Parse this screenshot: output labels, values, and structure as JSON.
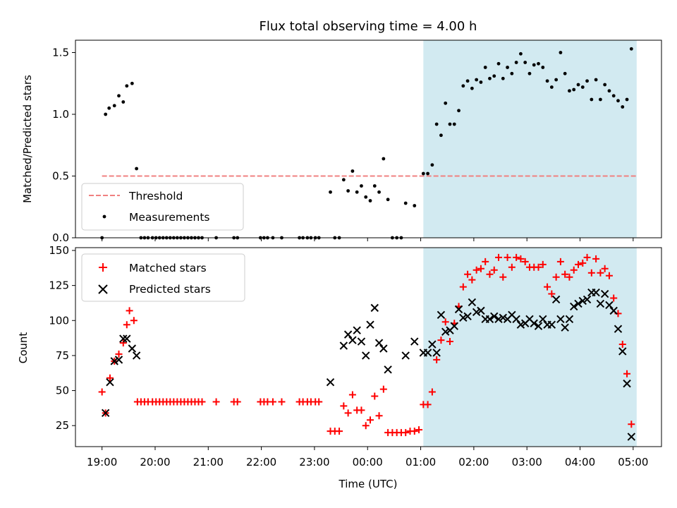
{
  "chart_data": {
    "title": "Flux total observing time = 4.00 h",
    "xlabel": "Time (UTC)",
    "colors": {
      "matched": "#ff0000",
      "predicted": "#000000",
      "threshold": "#f08080",
      "shade": "#add8e6"
    },
    "x_ticks": [
      {
        "t": 0,
        "label": "19:00"
      },
      {
        "t": 60,
        "label": "20:00"
      },
      {
        "t": 120,
        "label": "21:00"
      },
      {
        "t": 180,
        "label": "22:00"
      },
      {
        "t": 240,
        "label": "23:00"
      },
      {
        "t": 300,
        "label": "00:00"
      },
      {
        "t": 360,
        "label": "01:00"
      },
      {
        "t": 420,
        "label": "02:00"
      },
      {
        "t": 480,
        "label": "03:00"
      },
      {
        "t": 540,
        "label": "04:00"
      },
      {
        "t": 600,
        "label": "05:00"
      }
    ],
    "xlim_minutes": [
      -30,
      632
    ],
    "shaded_span_minutes": [
      363,
      604
    ],
    "top": {
      "type": "scatter",
      "ylabel": "Matched/Predicted stars",
      "ylim": [
        0,
        1.6
      ],
      "yticks": [
        0.0,
        0.5,
        1.0,
        1.5
      ],
      "threshold": 0.5,
      "threshold_range_minutes": [
        0,
        604
      ],
      "legend": {
        "threshold": "Threshold",
        "measurements": "Measurements"
      },
      "points": [
        [
          0,
          0.0
        ],
        [
          4,
          1.0
        ],
        [
          8,
          1.05
        ],
        [
          14,
          1.07
        ],
        [
          19,
          1.15
        ],
        [
          24,
          1.1
        ],
        [
          28,
          1.23
        ],
        [
          34,
          1.25
        ],
        [
          39,
          0.56
        ],
        [
          44,
          0.0
        ],
        [
          48,
          0.0
        ],
        [
          52,
          0.0
        ],
        [
          57,
          0.0
        ],
        [
          61,
          0.0
        ],
        [
          65,
          0.0
        ],
        [
          69,
          0.0
        ],
        [
          73,
          0.0
        ],
        [
          77,
          0.0
        ],
        [
          81,
          0.0
        ],
        [
          85,
          0.0
        ],
        [
          89,
          0.0
        ],
        [
          93,
          0.0
        ],
        [
          97,
          0.0
        ],
        [
          101,
          0.0
        ],
        [
          105,
          0.0
        ],
        [
          109,
          0.0
        ],
        [
          113,
          0.0
        ],
        [
          129,
          0.0
        ],
        [
          149,
          0.0
        ],
        [
          153,
          0.0
        ],
        [
          179,
          0.0
        ],
        [
          183,
          0.0
        ],
        [
          187,
          0.0
        ],
        [
          193,
          0.0
        ],
        [
          203,
          0.0
        ],
        [
          223,
          0.0
        ],
        [
          227,
          0.0
        ],
        [
          232,
          0.0
        ],
        [
          236,
          0.0
        ],
        [
          241,
          0.0
        ],
        [
          245,
          0.0
        ],
        [
          258,
          0.37
        ],
        [
          263,
          0.0
        ],
        [
          268,
          0.0
        ],
        [
          273,
          0.47
        ],
        [
          278,
          0.38
        ],
        [
          283,
          0.54
        ],
        [
          288,
          0.37
        ],
        [
          293,
          0.42
        ],
        [
          298,
          0.33
        ],
        [
          303,
          0.3
        ],
        [
          308,
          0.42
        ],
        [
          313,
          0.37
        ],
        [
          318,
          0.64
        ],
        [
          323,
          0.31
        ],
        [
          328,
          0.0
        ],
        [
          333,
          0.0
        ],
        [
          338,
          0.0
        ],
        [
          343,
          0.28
        ],
        [
          353,
          0.26
        ],
        [
          363,
          0.52
        ],
        [
          368,
          0.52
        ],
        [
          373,
          0.59
        ],
        [
          378,
          0.92
        ],
        [
          383,
          0.83
        ],
        [
          388,
          1.09
        ],
        [
          393,
          0.92
        ],
        [
          398,
          0.92
        ],
        [
          403,
          1.03
        ],
        [
          408,
          1.23
        ],
        [
          413,
          1.27
        ],
        [
          418,
          1.21
        ],
        [
          423,
          1.28
        ],
        [
          428,
          1.26
        ],
        [
          433,
          1.38
        ],
        [
          438,
          1.29
        ],
        [
          443,
          1.31
        ],
        [
          448,
          1.41
        ],
        [
          453,
          1.29
        ],
        [
          458,
          1.38
        ],
        [
          463,
          1.33
        ],
        [
          468,
          1.42
        ],
        [
          473,
          1.49
        ],
        [
          478,
          1.42
        ],
        [
          483,
          1.33
        ],
        [
          488,
          1.4
        ],
        [
          493,
          1.41
        ],
        [
          498,
          1.38
        ],
        [
          503,
          1.27
        ],
        [
          508,
          1.22
        ],
        [
          513,
          1.28
        ],
        [
          518,
          1.5
        ],
        [
          523,
          1.33
        ],
        [
          528,
          1.19
        ],
        [
          533,
          1.2
        ],
        [
          538,
          1.24
        ],
        [
          543,
          1.22
        ],
        [
          548,
          1.27
        ],
        [
          553,
          1.12
        ],
        [
          558,
          1.28
        ],
        [
          563,
          1.12
        ],
        [
          568,
          1.24
        ],
        [
          573,
          1.19
        ],
        [
          578,
          1.15
        ],
        [
          583,
          1.11
        ],
        [
          588,
          1.06
        ],
        [
          593,
          1.12
        ],
        [
          598,
          1.53
        ]
      ]
    },
    "bottom": {
      "type": "scatter",
      "ylabel": "Count",
      "ylim": [
        10,
        152
      ],
      "yticks": [
        25,
        50,
        75,
        100,
        125,
        150
      ],
      "legend": {
        "matched": "Matched stars",
        "predicted": "Predicted stars"
      },
      "matched": [
        [
          0,
          49
        ],
        [
          4,
          34
        ],
        [
          9,
          59
        ],
        [
          14,
          71
        ],
        [
          19,
          76
        ],
        [
          24,
          84
        ],
        [
          28,
          97
        ],
        [
          31,
          107
        ],
        [
          36,
          100
        ],
        [
          40,
          42
        ],
        [
          44,
          42
        ],
        [
          48,
          42
        ],
        [
          52,
          42
        ],
        [
          57,
          42
        ],
        [
          61,
          42
        ],
        [
          65,
          42
        ],
        [
          69,
          42
        ],
        [
          73,
          42
        ],
        [
          77,
          42
        ],
        [
          81,
          42
        ],
        [
          85,
          42
        ],
        [
          89,
          42
        ],
        [
          93,
          42
        ],
        [
          97,
          42
        ],
        [
          101,
          42
        ],
        [
          105,
          42
        ],
        [
          109,
          42
        ],
        [
          113,
          42
        ],
        [
          129,
          42
        ],
        [
          149,
          42
        ],
        [
          153,
          42
        ],
        [
          179,
          42
        ],
        [
          183,
          42
        ],
        [
          187,
          42
        ],
        [
          193,
          42
        ],
        [
          203,
          42
        ],
        [
          223,
          42
        ],
        [
          227,
          42
        ],
        [
          232,
          42
        ],
        [
          236,
          42
        ],
        [
          241,
          42
        ],
        [
          245,
          42
        ],
        [
          258,
          21
        ],
        [
          263,
          21
        ],
        [
          268,
          21
        ],
        [
          273,
          39
        ],
        [
          278,
          34
        ],
        [
          283,
          47
        ],
        [
          288,
          36
        ],
        [
          293,
          36
        ],
        [
          298,
          25
        ],
        [
          303,
          29
        ],
        [
          308,
          46
        ],
        [
          313,
          32
        ],
        [
          318,
          51
        ],
        [
          323,
          20
        ],
        [
          328,
          20
        ],
        [
          333,
          20
        ],
        [
          338,
          20
        ],
        [
          343,
          20
        ],
        [
          348,
          21
        ],
        [
          353,
          21
        ],
        [
          358,
          22
        ],
        [
          363,
          40
        ],
        [
          368,
          40
        ],
        [
          373,
          49
        ],
        [
          378,
          72
        ],
        [
          383,
          86
        ],
        [
          388,
          99
        ],
        [
          393,
          85
        ],
        [
          398,
          98
        ],
        [
          403,
          110
        ],
        [
          408,
          124
        ],
        [
          413,
          133
        ],
        [
          418,
          129
        ],
        [
          423,
          136
        ],
        [
          428,
          137
        ],
        [
          433,
          142
        ],
        [
          438,
          133
        ],
        [
          443,
          136
        ],
        [
          448,
          145
        ],
        [
          453,
          131
        ],
        [
          458,
          145
        ],
        [
          463,
          138
        ],
        [
          468,
          145
        ],
        [
          473,
          144
        ],
        [
          478,
          142
        ],
        [
          483,
          138
        ],
        [
          488,
          138
        ],
        [
          493,
          138
        ],
        [
          498,
          140
        ],
        [
          503,
          124
        ],
        [
          508,
          119
        ],
        [
          513,
          131
        ],
        [
          518,
          142
        ],
        [
          523,
          133
        ],
        [
          528,
          131
        ],
        [
          533,
          136
        ],
        [
          538,
          140
        ],
        [
          543,
          141
        ],
        [
          548,
          145
        ],
        [
          553,
          134
        ],
        [
          558,
          144
        ],
        [
          563,
          134
        ],
        [
          568,
          137
        ],
        [
          573,
          132
        ],
        [
          578,
          116
        ],
        [
          583,
          105
        ],
        [
          588,
          83
        ],
        [
          593,
          62
        ],
        [
          598,
          26
        ]
      ],
      "predicted": [
        [
          4,
          34
        ],
        [
          9,
          56
        ],
        [
          14,
          71
        ],
        [
          19,
          72
        ],
        [
          24,
          87
        ],
        [
          28,
          87
        ],
        [
          34,
          80
        ],
        [
          39,
          75
        ],
        [
          258,
          56
        ],
        [
          273,
          82
        ],
        [
          278,
          90
        ],
        [
          283,
          86
        ],
        [
          288,
          93
        ],
        [
          293,
          85
        ],
        [
          298,
          75
        ],
        [
          303,
          97
        ],
        [
          308,
          109
        ],
        [
          313,
          84
        ],
        [
          318,
          80
        ],
        [
          323,
          65
        ],
        [
          343,
          75
        ],
        [
          353,
          85
        ],
        [
          363,
          77
        ],
        [
          368,
          77
        ],
        [
          373,
          83
        ],
        [
          378,
          77
        ],
        [
          383,
          104
        ],
        [
          388,
          92
        ],
        [
          393,
          93
        ],
        [
          398,
          96
        ],
        [
          403,
          108
        ],
        [
          408,
          102
        ],
        [
          413,
          103
        ],
        [
          418,
          113
        ],
        [
          423,
          106
        ],
        [
          428,
          107
        ],
        [
          433,
          101
        ],
        [
          438,
          101
        ],
        [
          443,
          103
        ],
        [
          448,
          101
        ],
        [
          453,
          102
        ],
        [
          458,
          101
        ],
        [
          463,
          104
        ],
        [
          468,
          101
        ],
        [
          473,
          97
        ],
        [
          478,
          98
        ],
        [
          483,
          101
        ],
        [
          488,
          98
        ],
        [
          493,
          96
        ],
        [
          498,
          101
        ],
        [
          503,
          97
        ],
        [
          508,
          97
        ],
        [
          513,
          115
        ],
        [
          518,
          101
        ],
        [
          523,
          95
        ],
        [
          528,
          101
        ],
        [
          533,
          110
        ],
        [
          538,
          112
        ],
        [
          543,
          114
        ],
        [
          548,
          115
        ],
        [
          553,
          120
        ],
        [
          558,
          120
        ],
        [
          563,
          112
        ],
        [
          568,
          119
        ],
        [
          573,
          111
        ],
        [
          578,
          107
        ],
        [
          583,
          94
        ],
        [
          588,
          78
        ],
        [
          593,
          55
        ],
        [
          598,
          17
        ]
      ]
    }
  }
}
